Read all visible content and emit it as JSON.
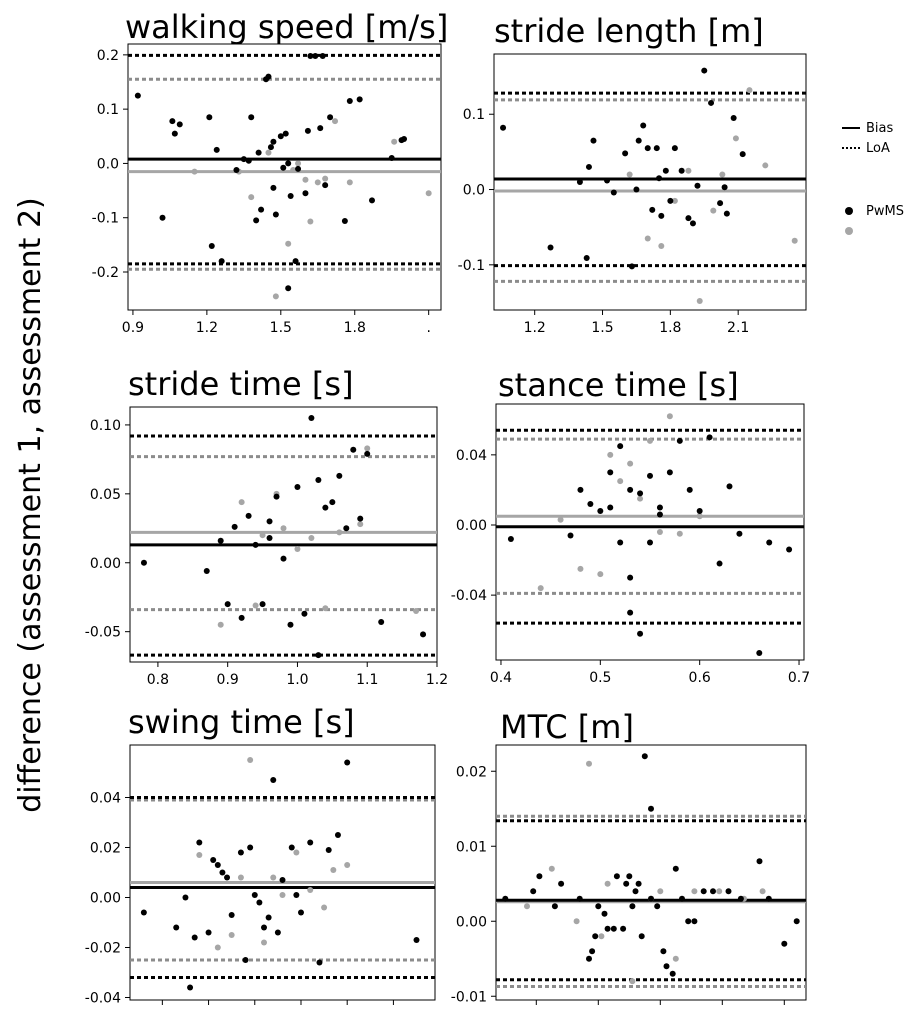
{
  "figure": {
    "ylabel": "difference (assessment 1, assessment 2)",
    "legend_lines": {
      "bias_label": "Bias",
      "loa_label": "LoA"
    },
    "legend_points": {
      "series1_label": "PwMS",
      "series2_label": ""
    }
  },
  "colors": {
    "pwms": "#000000",
    "other": "#a6a6a6",
    "other_loa": "#8c8c8c"
  },
  "chart_data": [
    {
      "type": "scatter",
      "title": "walking speed [m/s]",
      "xlim": [
        0.88,
        2.15
      ],
      "ylim": [
        -0.27,
        0.22
      ],
      "xtick_values": [
        0.9,
        1.2,
        1.5,
        1.8,
        2.1
      ],
      "xtick_labels": [
        "0.9",
        "1.2",
        "1.5",
        "1.8",
        "."
      ],
      "ytick_values": [
        -0.2,
        -0.1,
        0.0,
        0.1,
        0.2
      ],
      "ytick_labels": [
        "-0.2",
        "-0.1",
        "0.0",
        "0.1",
        "0.2"
      ],
      "lines": {
        "bias_pwms": 0.008,
        "loa_pwms": [
          -0.185,
          0.199
        ],
        "bias_other": -0.015,
        "loa_other": [
          -0.195,
          0.155
        ]
      },
      "series": [
        {
          "name": "PwMS",
          "x": [
            0.92,
            1.02,
            1.06,
            1.07,
            1.09,
            1.21,
            1.22,
            1.24,
            1.26,
            1.32,
            1.35,
            1.37,
            1.38,
            1.4,
            1.41,
            1.42,
            1.44,
            1.45,
            1.46,
            1.47,
            1.47,
            1.5,
            1.51,
            1.52,
            1.53,
            1.54,
            1.56,
            1.57,
            1.6,
            1.61,
            1.62,
            1.64,
            1.66,
            1.67,
            1.68,
            1.7,
            1.76,
            1.78,
            1.82,
            1.87,
            1.95,
            1.99,
            2.0,
            1.48,
            1.53
          ],
          "y": [
            0.125,
            -0.1,
            0.078,
            0.055,
            0.072,
            0.085,
            -0.152,
            0.025,
            -0.18,
            -0.012,
            0.008,
            0.005,
            0.085,
            -0.105,
            0.02,
            -0.085,
            0.155,
            0.16,
            0.03,
            0.04,
            -0.045,
            0.05,
            -0.008,
            0.055,
            -0.23,
            -0.06,
            -0.18,
            -0.01,
            -0.055,
            0.06,
            0.198,
            0.198,
            0.065,
            0.198,
            -0.04,
            0.085,
            -0.106,
            0.115,
            0.118,
            -0.068,
            0.01,
            0.043,
            0.045,
            -0.094,
            0.0
          ]
        },
        {
          "name": "",
          "x": [
            1.15,
            1.33,
            1.38,
            1.45,
            1.48,
            1.53,
            1.55,
            1.57,
            1.6,
            1.62,
            1.65,
            1.68,
            1.72,
            1.78,
            1.82,
            1.96,
            2.1
          ],
          "y": [
            -0.015,
            -0.015,
            -0.062,
            0.02,
            -0.245,
            -0.148,
            -0.012,
            0.0,
            -0.03,
            -0.107,
            -0.035,
            -0.028,
            0.078,
            -0.035,
            0.118,
            0.04,
            -0.055
          ]
        }
      ]
    },
    {
      "type": "scatter",
      "title": "stride length [m]",
      "xlim": [
        1.02,
        2.4
      ],
      "ylim": [
        -0.16,
        0.18
      ],
      "xtick_values": [
        1.2,
        1.5,
        1.8,
        2.1
      ],
      "xtick_labels": [
        "1.2",
        "1.5",
        "1.8",
        "2.1"
      ],
      "ytick_values": [
        -0.1,
        0.0,
        0.1
      ],
      "ytick_labels": [
        "-0.1",
        "0.0",
        "0.1"
      ],
      "lines": {
        "bias_pwms": 0.014,
        "loa_pwms": [
          -0.101,
          0.128
        ],
        "bias_other": -0.002,
        "loa_other": [
          -0.122,
          0.119
        ]
      },
      "series": [
        {
          "name": "PwMS",
          "x": [
            1.06,
            1.27,
            1.4,
            1.43,
            1.44,
            1.46,
            1.52,
            1.55,
            1.6,
            1.63,
            1.66,
            1.68,
            1.7,
            1.72,
            1.74,
            1.76,
            1.78,
            1.8,
            1.82,
            1.85,
            1.88,
            1.92,
            1.95,
            1.98,
            2.02,
            2.05,
            2.08,
            2.12,
            1.65,
            1.75,
            1.9,
            2.04
          ],
          "y": [
            0.082,
            -0.077,
            0.01,
            -0.091,
            0.03,
            0.065,
            0.012,
            -0.004,
            0.048,
            -0.102,
            0.065,
            0.085,
            0.055,
            -0.027,
            0.055,
            -0.035,
            0.025,
            -0.015,
            0.055,
            0.025,
            -0.038,
            0.005,
            0.158,
            0.115,
            -0.018,
            -0.032,
            0.095,
            0.047,
            0.0,
            0.015,
            -0.045,
            0.003
          ]
        },
        {
          "name": "",
          "x": [
            1.62,
            1.7,
            1.76,
            1.82,
            1.88,
            1.93,
            1.99,
            2.03,
            2.09,
            2.15,
            2.22,
            2.35
          ],
          "y": [
            0.02,
            -0.065,
            -0.075,
            -0.015,
            0.025,
            -0.148,
            -0.028,
            0.02,
            0.068,
            0.132,
            0.032,
            -0.068
          ]
        }
      ]
    },
    {
      "type": "scatter",
      "title": "stride time [s]",
      "xlim": [
        0.76,
        1.2
      ],
      "ylim": [
        -0.072,
        0.113
      ],
      "xtick_values": [
        0.8,
        0.9,
        1.0,
        1.1,
        1.2
      ],
      "xtick_labels": [
        "0.8",
        "0.9",
        "1.0",
        "1.1",
        "1.2"
      ],
      "ytick_values": [
        -0.05,
        0.0,
        0.05,
        0.1
      ],
      "ytick_labels": [
        "-0.05",
        "0.00",
        "0.05",
        "0.10"
      ],
      "lines": {
        "bias_pwms": 0.013,
        "loa_pwms": [
          -0.067,
          0.092
        ],
        "bias_other": 0.022,
        "loa_other": [
          -0.034,
          0.077
        ]
      },
      "series": [
        {
          "name": "PwMS",
          "x": [
            0.78,
            0.87,
            0.89,
            0.9,
            0.91,
            0.92,
            0.93,
            0.94,
            0.95,
            0.96,
            0.97,
            0.98,
            0.99,
            1.0,
            1.01,
            1.02,
            1.03,
            1.04,
            1.05,
            1.06,
            1.07,
            1.08,
            1.09,
            1.1,
            1.12,
            1.18,
            1.03,
            0.96
          ],
          "y": [
            0.0,
            -0.006,
            0.016,
            -0.03,
            0.026,
            -0.04,
            0.034,
            0.013,
            -0.03,
            0.018,
            0.048,
            0.003,
            -0.045,
            0.055,
            -0.037,
            0.105,
            -0.067,
            0.04,
            0.044,
            0.063,
            0.025,
            0.082,
            0.032,
            0.079,
            -0.043,
            -0.052,
            0.06,
            0.03
          ]
        },
        {
          "name": "",
          "x": [
            0.89,
            0.92,
            0.94,
            0.95,
            0.97,
            0.98,
            1.0,
            1.02,
            1.04,
            1.06,
            1.09,
            1.1,
            1.17
          ],
          "y": [
            -0.045,
            0.044,
            -0.031,
            0.02,
            0.05,
            0.025,
            0.01,
            0.018,
            -0.033,
            0.022,
            0.028,
            0.083,
            -0.035
          ]
        }
      ]
    },
    {
      "type": "scatter",
      "title": "stance time [s]",
      "xlim": [
        0.395,
        0.705
      ],
      "ylim": [
        -0.077,
        0.069
      ],
      "xtick_values": [
        0.4,
        0.5,
        0.6,
        0.7
      ],
      "xtick_labels": [
        "0.4",
        "0.5",
        "0.6",
        "0.7"
      ],
      "ytick_values": [
        -0.04,
        0.0,
        0.04
      ],
      "ytick_labels": [
        "-0.04",
        "0.00",
        "0.04"
      ],
      "lines": {
        "bias_pwms": -0.001,
        "loa_pwms": [
          -0.056,
          0.054
        ],
        "bias_other": 0.005,
        "loa_other": [
          -0.039,
          0.049
        ]
      },
      "series": [
        {
          "name": "PwMS",
          "x": [
            0.41,
            0.47,
            0.48,
            0.49,
            0.5,
            0.51,
            0.51,
            0.52,
            0.52,
            0.53,
            0.53,
            0.54,
            0.54,
            0.55,
            0.55,
            0.56,
            0.57,
            0.58,
            0.59,
            0.6,
            0.61,
            0.62,
            0.63,
            0.64,
            0.66,
            0.67,
            0.69,
            0.53,
            0.56
          ],
          "y": [
            -0.008,
            -0.006,
            0.02,
            0.012,
            0.008,
            0.01,
            0.03,
            0.045,
            -0.01,
            -0.05,
            0.02,
            -0.062,
            0.018,
            0.028,
            -0.01,
            0.006,
            0.03,
            0.048,
            0.02,
            0.008,
            0.05,
            -0.022,
            0.022,
            -0.005,
            -0.073,
            -0.01,
            -0.014,
            -0.03,
            0.01
          ]
        },
        {
          "name": "",
          "x": [
            0.44,
            0.46,
            0.48,
            0.5,
            0.51,
            0.52,
            0.53,
            0.54,
            0.55,
            0.56,
            0.57,
            0.58,
            0.6
          ],
          "y": [
            -0.036,
            0.003,
            -0.025,
            -0.028,
            0.04,
            0.025,
            0.035,
            0.015,
            0.048,
            -0.004,
            0.062,
            -0.005,
            0.005
          ]
        }
      ]
    },
    {
      "type": "scatter",
      "title": "swing time [s]",
      "xlim": [
        0.73,
        1.39
      ],
      "ylim": [
        -0.041,
        0.061
      ],
      "xtick_values": [
        0.8,
        0.9,
        1.0,
        1.1,
        1.2,
        1.3
      ],
      "xtick_labels": [
        "",
        "",
        "",
        "",
        "",
        ""
      ],
      "ytick_values": [
        -0.04,
        -0.02,
        0.0,
        0.02,
        0.04
      ],
      "ytick_labels": [
        "-0.04",
        "-0.02",
        "0.00",
        "0.02",
        "0.04"
      ],
      "lines": {
        "bias_pwms": 0.004,
        "loa_pwms": [
          -0.032,
          0.04
        ],
        "bias_other": 0.006,
        "loa_other": [
          -0.025,
          0.039
        ]
      },
      "series": [
        {
          "name": "PwMS",
          "x": [
            0.76,
            0.83,
            0.85,
            0.86,
            0.87,
            0.88,
            0.9,
            0.91,
            0.92,
            0.93,
            0.94,
            0.95,
            0.97,
            0.98,
            0.99,
            1.0,
            1.01,
            1.02,
            1.03,
            1.04,
            1.05,
            1.06,
            1.08,
            1.09,
            1.1,
            1.12,
            1.14,
            1.16,
            1.18,
            1.2,
            1.35
          ],
          "y": [
            -0.006,
            -0.012,
            0.0,
            -0.036,
            -0.016,
            0.022,
            -0.014,
            0.015,
            0.013,
            0.01,
            0.008,
            -0.007,
            0.018,
            -0.025,
            0.02,
            0.001,
            -0.002,
            -0.012,
            -0.008,
            0.047,
            -0.014,
            0.007,
            0.02,
            0.001,
            -0.006,
            0.022,
            -0.026,
            0.019,
            0.025,
            0.054,
            -0.017
          ]
        },
        {
          "name": "",
          "x": [
            0.88,
            0.92,
            0.95,
            0.97,
            0.99,
            1.02,
            1.04,
            1.06,
            1.09,
            1.12,
            1.15,
            1.17,
            1.2
          ],
          "y": [
            0.017,
            -0.02,
            -0.015,
            0.008,
            0.055,
            -0.018,
            0.008,
            0.001,
            0.018,
            0.003,
            -0.004,
            0.011,
            0.013
          ]
        }
      ]
    },
    {
      "type": "scatter",
      "title": "MTC [m]",
      "xlim": [
        0.0,
        1.0
      ],
      "ylim": [
        -0.0105,
        0.0235
      ],
      "xtick_values": [
        0.13,
        0.33,
        0.53,
        0.73,
        0.93
      ],
      "xtick_labels": [
        "",
        "",
        "",
        "",
        ""
      ],
      "ytick_values": [
        -0.01,
        0.0,
        0.01,
        0.02
      ],
      "ytick_labels": [
        "-0.01",
        "0.00",
        "0.01",
        "0.02"
      ],
      "lines": {
        "bias_pwms": 0.0028,
        "loa_pwms": [
          -0.0078,
          0.0134
        ],
        "bias_other": 0.0026,
        "loa_other": [
          -0.0087,
          0.014
        ]
      },
      "series": [
        {
          "name": "PwMS",
          "x": [
            0.03,
            0.12,
            0.14,
            0.19,
            0.21,
            0.27,
            0.3,
            0.31,
            0.32,
            0.33,
            0.35,
            0.36,
            0.38,
            0.39,
            0.41,
            0.43,
            0.44,
            0.45,
            0.46,
            0.47,
            0.48,
            0.5,
            0.52,
            0.54,
            0.55,
            0.57,
            0.58,
            0.6,
            0.62,
            0.64,
            0.67,
            0.7,
            0.75,
            0.79,
            0.85,
            0.88,
            0.93,
            0.97,
            0.42,
            0.5
          ],
          "y": [
            0.003,
            0.004,
            0.006,
            0.002,
            0.005,
            0.003,
            -0.005,
            -0.004,
            -0.002,
            0.002,
            0.001,
            -0.001,
            -0.001,
            0.006,
            -0.001,
            0.006,
            0.002,
            0.004,
            0.005,
            -0.002,
            0.022,
            0.015,
            0.002,
            -0.004,
            -0.006,
            -0.007,
            0.007,
            0.003,
            0.0,
            0.0,
            0.004,
            0.004,
            0.004,
            0.003,
            0.008,
            0.003,
            -0.003,
            0.0,
            0.005,
            0.003
          ]
        },
        {
          "name": "",
          "x": [
            0.1,
            0.18,
            0.26,
            0.3,
            0.34,
            0.36,
            0.44,
            0.5,
            0.53,
            0.58,
            0.64,
            0.72,
            0.8,
            0.86
          ],
          "y": [
            0.002,
            0.007,
            0.0,
            0.021,
            -0.002,
            0.005,
            -0.008,
            0.003,
            0.004,
            -0.005,
            0.004,
            0.004,
            0.003,
            0.004
          ]
        }
      ]
    }
  ]
}
